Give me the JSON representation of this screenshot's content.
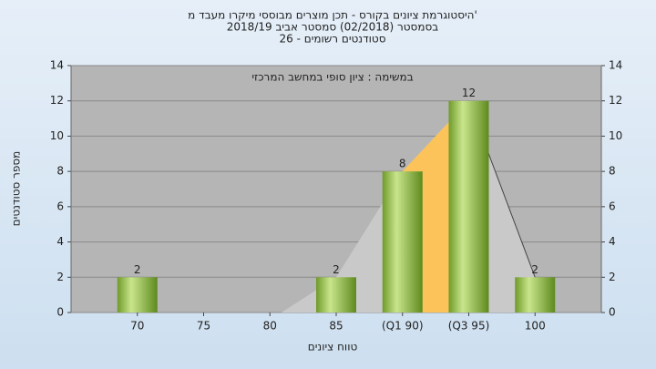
{
  "chart_data": {
    "type": "bar",
    "title": "'היסטוגרמת ציונים בקורס - תכן מוצרים מבוססי מיקרו מעבד מ",
    "subtitle": "בסמסטר (02/2018) סמסטר אביב 2018/19",
    "subtitle2": "סטודנטים רשומים - 26",
    "annotation": "במשימה : ציון סופי במחשב המרכזי",
    "ylabel": "מספר סטודנטים",
    "xlabel": "טווח ציונים",
    "categories": [
      "70",
      "75",
      "80",
      "85",
      "(Q1 90)",
      "(Q3 95)",
      "100"
    ],
    "values": [
      2,
      0,
      0,
      2,
      8,
      12,
      2
    ],
    "color": "#8fbf3f",
    "ylim": [
      0,
      14
    ],
    "yticks": [
      0,
      2,
      4,
      6,
      8,
      10,
      12,
      14
    ],
    "y2lim": [
      0,
      14
    ],
    "y2ticks": [
      0,
      2,
      4,
      6,
      8,
      10,
      12,
      14
    ],
    "grid": true
  }
}
